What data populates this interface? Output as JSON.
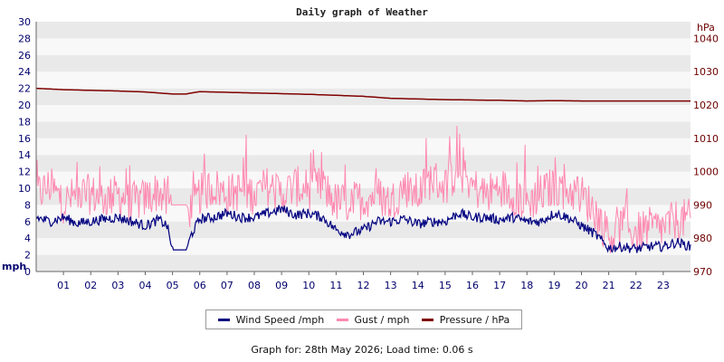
{
  "chart_data": {
    "type": "line",
    "title": "Daily graph of Weather",
    "left_axis": {
      "label": "mph",
      "ylim": [
        0,
        30
      ],
      "ticks": [
        "0",
        "2",
        "4",
        "6",
        "8",
        "10",
        "12",
        "14",
        "16",
        "18",
        "20",
        "22",
        "24",
        "26",
        "28",
        "30"
      ]
    },
    "right_axis": {
      "label": "hPa",
      "ylim": [
        970,
        1045
      ],
      "ticks": [
        "970",
        "980",
        "990",
        "1000",
        "1010",
        "1020",
        "1030",
        "1040"
      ]
    },
    "x_ticks": [
      "01",
      "02",
      "03",
      "04",
      "05",
      "06",
      "07",
      "08",
      "09",
      "10",
      "11",
      "12",
      "13",
      "14",
      "15",
      "16",
      "17",
      "18",
      "19",
      "20",
      "21",
      "22",
      "23"
    ],
    "x_range_hours": [
      0,
      24
    ],
    "grid": "horizontal bands",
    "legend_position": "bottom",
    "series": [
      {
        "name": "Wind Speed /mph",
        "axis": "left",
        "color": "#000080",
        "x": [
          0,
          0.5,
          1,
          1.5,
          2,
          2.5,
          3,
          3.5,
          4,
          4.5,
          4.8,
          5,
          5.5,
          5.7,
          6,
          6.5,
          7,
          7.5,
          8,
          8.5,
          9,
          9.5,
          10,
          10.5,
          11,
          11.5,
          12,
          12.5,
          13,
          13.5,
          14,
          14.5,
          15,
          15.5,
          16,
          16.5,
          17,
          17.5,
          18,
          18.5,
          19,
          19.5,
          20,
          20.5,
          21,
          21.5,
          22,
          22.5,
          23,
          23.5,
          24
        ],
        "values": [
          6.5,
          6,
          6.5,
          5.8,
          6,
          6.3,
          6.5,
          6,
          5.5,
          6.2,
          5.5,
          2.6,
          2.6,
          4.5,
          6.3,
          6.5,
          7,
          6.5,
          6.5,
          7,
          7.5,
          6.8,
          7,
          6.5,
          5,
          4.5,
          5,
          6,
          6,
          6.3,
          5.7,
          6,
          6,
          7,
          6.5,
          6.5,
          6.2,
          6.5,
          6,
          6,
          7,
          6.5,
          5.5,
          4.5,
          2.8,
          3,
          2.7,
          3,
          3,
          3.5,
          3
        ]
      },
      {
        "name": "Gust / mph",
        "axis": "left",
        "color": "#ff88b0",
        "x": [
          0,
          0.5,
          1,
          1.5,
          2,
          2.5,
          3,
          3.5,
          4,
          4.5,
          4.8,
          5,
          5.5,
          5.7,
          6,
          6.5,
          7,
          7.5,
          8,
          8.5,
          9,
          9.5,
          10,
          10.5,
          11,
          11.5,
          12,
          12.5,
          13,
          13.5,
          14,
          14.5,
          15,
          15.5,
          16,
          16.5,
          17,
          17.5,
          18,
          18.5,
          19,
          19.5,
          20,
          20.5,
          21,
          21.5,
          22,
          22.5,
          23,
          23.5,
          24
        ],
        "values": [
          9,
          10,
          8,
          9,
          9,
          8.5,
          9,
          8,
          8.5,
          9.5,
          8,
          8,
          8,
          7,
          9,
          10,
          9,
          9.5,
          9,
          10,
          9,
          10,
          9.5,
          10,
          8,
          8,
          8.5,
          9,
          8,
          10,
          9,
          11,
          10,
          12,
          10,
          9,
          10,
          9,
          8,
          9,
          10,
          9.5,
          9,
          7,
          4,
          5,
          4.5,
          5,
          5,
          6,
          6
        ]
      },
      {
        "name": "Pressure / hPa",
        "axis": "right",
        "color": "#800000",
        "x": [
          0,
          1,
          2,
          3,
          4,
          5,
          5.5,
          6,
          7,
          8,
          9,
          10,
          11,
          12,
          13,
          14,
          15,
          16,
          17,
          18,
          19,
          20,
          21,
          22,
          23,
          24
        ],
        "values": [
          1025,
          1024.6,
          1024.4,
          1024.2,
          1023.9,
          1023.3,
          1023.3,
          1024,
          1023.8,
          1023.6,
          1023.4,
          1023.2,
          1022.9,
          1022.6,
          1022,
          1021.8,
          1021.6,
          1021.5,
          1021.4,
          1021.2,
          1021.3,
          1021.2,
          1021.2,
          1021.2,
          1021.2,
          1021.2
        ]
      }
    ]
  },
  "footer": "Graph for: 28th May 2026; Load time: 0.06 s"
}
